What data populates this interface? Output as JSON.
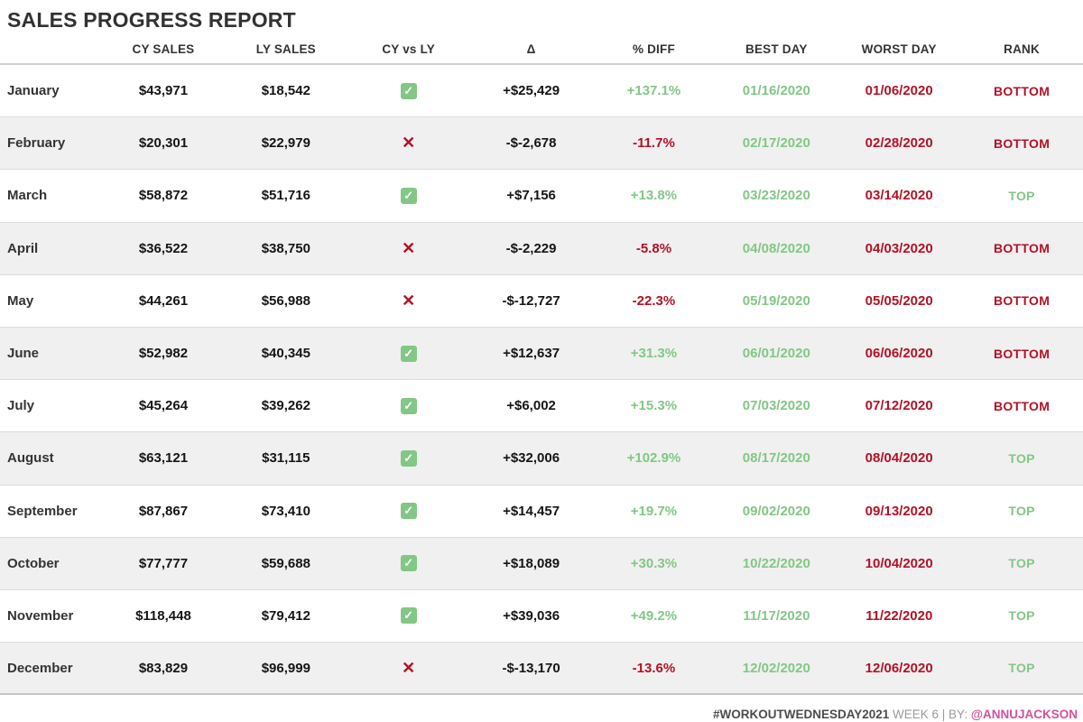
{
  "title": "SALES PROGRESS REPORT",
  "icons": {
    "check": "✓",
    "cross": "✕"
  },
  "colors": {
    "positive_green": "#82c785",
    "negative_red": "#b11226",
    "zebra_row": "#f0f0f0",
    "text_dark": "#333333",
    "footer_pink": "#d1519e"
  },
  "footer": {
    "hashtag": "#WORKOUTWEDNESDAY2021",
    "week": " WEEK 6 | BY: ",
    "author": "@ANNUJACKSON"
  },
  "chart_data": {
    "type": "table",
    "title": "SALES PROGRESS REPORT",
    "columns": [
      "CY SALES",
      "LY SALES",
      "CY vs LY",
      "Δ",
      "% DIFF",
      "BEST DAY",
      "WORST DAY",
      "RANK"
    ],
    "rows": [
      {
        "month": "January",
        "cy_sales": "$43,971",
        "ly_sales": "$18,542",
        "cy_beats_ly": true,
        "delta": "+$25,429",
        "pct_diff": "+137.1%",
        "best_day": "01/16/2020",
        "worst_day": "01/06/2020",
        "rank": "BOTTOM"
      },
      {
        "month": "February",
        "cy_sales": "$20,301",
        "ly_sales": "$22,979",
        "cy_beats_ly": false,
        "delta": "-$-2,678",
        "pct_diff": "-11.7%",
        "best_day": "02/17/2020",
        "worst_day": "02/28/2020",
        "rank": "BOTTOM"
      },
      {
        "month": "March",
        "cy_sales": "$58,872",
        "ly_sales": "$51,716",
        "cy_beats_ly": true,
        "delta": "+$7,156",
        "pct_diff": "+13.8%",
        "best_day": "03/23/2020",
        "worst_day": "03/14/2020",
        "rank": "TOP"
      },
      {
        "month": "April",
        "cy_sales": "$36,522",
        "ly_sales": "$38,750",
        "cy_beats_ly": false,
        "delta": "-$-2,229",
        "pct_diff": "-5.8%",
        "best_day": "04/08/2020",
        "worst_day": "04/03/2020",
        "rank": "BOTTOM"
      },
      {
        "month": "May",
        "cy_sales": "$44,261",
        "ly_sales": "$56,988",
        "cy_beats_ly": false,
        "delta": "-$-12,727",
        "pct_diff": "-22.3%",
        "best_day": "05/19/2020",
        "worst_day": "05/05/2020",
        "rank": "BOTTOM"
      },
      {
        "month": "June",
        "cy_sales": "$52,982",
        "ly_sales": "$40,345",
        "cy_beats_ly": true,
        "delta": "+$12,637",
        "pct_diff": "+31.3%",
        "best_day": "06/01/2020",
        "worst_day": "06/06/2020",
        "rank": "BOTTOM"
      },
      {
        "month": "July",
        "cy_sales": "$45,264",
        "ly_sales": "$39,262",
        "cy_beats_ly": true,
        "delta": "+$6,002",
        "pct_diff": "+15.3%",
        "best_day": "07/03/2020",
        "worst_day": "07/12/2020",
        "rank": "BOTTOM"
      },
      {
        "month": "August",
        "cy_sales": "$63,121",
        "ly_sales": "$31,115",
        "cy_beats_ly": true,
        "delta": "+$32,006",
        "pct_diff": "+102.9%",
        "best_day": "08/17/2020",
        "worst_day": "08/04/2020",
        "rank": "TOP"
      },
      {
        "month": "September",
        "cy_sales": "$87,867",
        "ly_sales": "$73,410",
        "cy_beats_ly": true,
        "delta": "+$14,457",
        "pct_diff": "+19.7%",
        "best_day": "09/02/2020",
        "worst_day": "09/13/2020",
        "rank": "TOP"
      },
      {
        "month": "October",
        "cy_sales": "$77,777",
        "ly_sales": "$59,688",
        "cy_beats_ly": true,
        "delta": "+$18,089",
        "pct_diff": "+30.3%",
        "best_day": "10/22/2020",
        "worst_day": "10/04/2020",
        "rank": "TOP"
      },
      {
        "month": "November",
        "cy_sales": "$118,448",
        "ly_sales": "$79,412",
        "cy_beats_ly": true,
        "delta": "+$39,036",
        "pct_diff": "+49.2%",
        "best_day": "11/17/2020",
        "worst_day": "11/22/2020",
        "rank": "TOP"
      },
      {
        "month": "December",
        "cy_sales": "$83,829",
        "ly_sales": "$96,999",
        "cy_beats_ly": false,
        "delta": "-$-13,170",
        "pct_diff": "-13.6%",
        "best_day": "12/02/2020",
        "worst_day": "12/06/2020",
        "rank": "TOP"
      }
    ]
  }
}
